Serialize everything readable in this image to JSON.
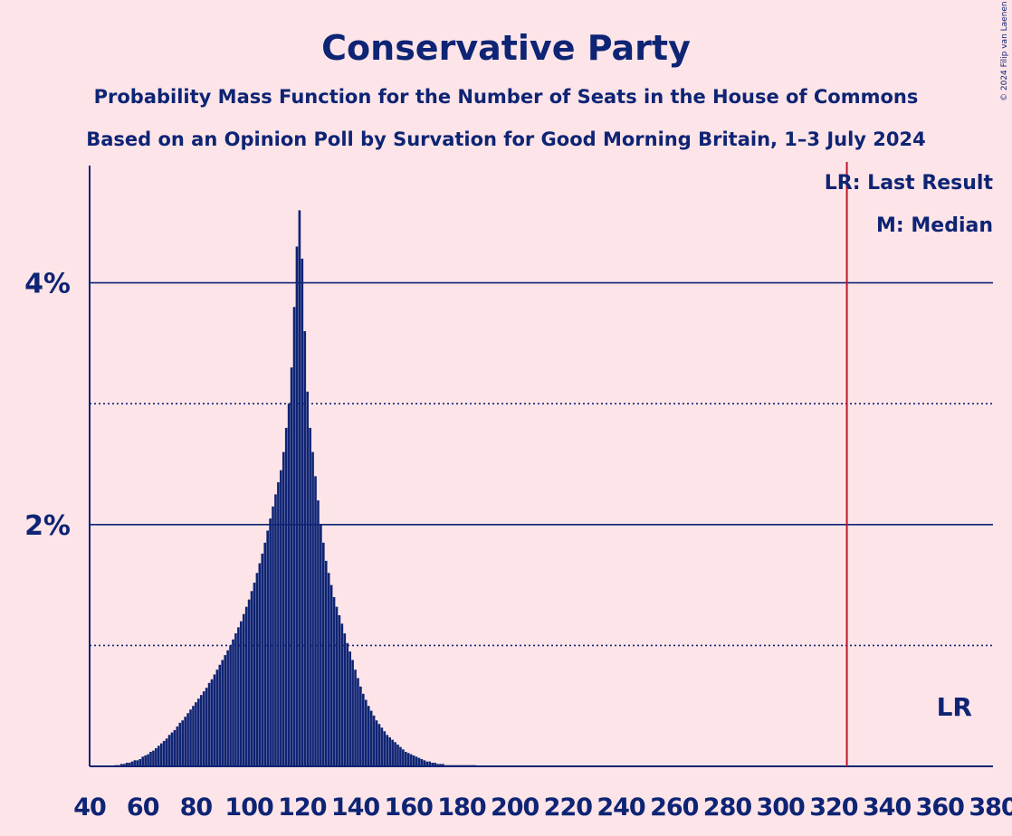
{
  "chart_data": {
    "type": "bar",
    "title": "Conservative Party",
    "subtitle1": "Probability Mass Function for the Number of Seats in the House of Commons",
    "subtitle2": "Based on an Opinion Poll by Survation for Good Morning Britain, 1–3 July 2024",
    "copyright": "© 2024 Filip van Laenen",
    "xlim": [
      40,
      380
    ],
    "ylim": [
      0,
      5
    ],
    "x_ticks": [
      40,
      60,
      80,
      100,
      120,
      140,
      160,
      180,
      200,
      220,
      240,
      260,
      280,
      300,
      320,
      340,
      360,
      380
    ],
    "y_ticks_labeled": [
      {
        "value": 2,
        "label": "2%"
      },
      {
        "value": 4,
        "label": "4%"
      }
    ],
    "y_gridlines_dotted": [
      1,
      3
    ],
    "last_result": {
      "seats": 325,
      "label": "LR"
    },
    "legend": {
      "last_result": "LR: Last Result",
      "median": "M: Median"
    },
    "bar_color": "#0e2474",
    "lr_line_color": "#c0152a",
    "series": [
      {
        "x": [
          50,
          51,
          52,
          53,
          54,
          55,
          56,
          57,
          58,
          59,
          60,
          61,
          62,
          63,
          64,
          65,
          66,
          67,
          68,
          69,
          70,
          71,
          72,
          73,
          74,
          75,
          76,
          77,
          78,
          79,
          80,
          81,
          82,
          83,
          84,
          85,
          86,
          87,
          88,
          89,
          90,
          91,
          92,
          93,
          94,
          95,
          96,
          97,
          98,
          99,
          100,
          101,
          102,
          103,
          104,
          105,
          106,
          107,
          108,
          109,
          110,
          111,
          112,
          113,
          114,
          115,
          116,
          117,
          118,
          119,
          120,
          121,
          122,
          123,
          124,
          125,
          126,
          127,
          128,
          129,
          130,
          131,
          132,
          133,
          134,
          135,
          136,
          137,
          138,
          139,
          140,
          141,
          142,
          143,
          144,
          145,
          146,
          147,
          148,
          149,
          150,
          151,
          152,
          153,
          154,
          155,
          156,
          157,
          158,
          159,
          160,
          161,
          162,
          163,
          164,
          165,
          166,
          167,
          168,
          169,
          170,
          171,
          172,
          173,
          174,
          175,
          176,
          177,
          178,
          179,
          180,
          181,
          182,
          183,
          184,
          185
        ],
        "values": [
          0.01,
          0.01,
          0.02,
          0.02,
          0.03,
          0.03,
          0.04,
          0.05,
          0.05,
          0.06,
          0.08,
          0.09,
          0.1,
          0.12,
          0.13,
          0.15,
          0.17,
          0.19,
          0.21,
          0.23,
          0.26,
          0.28,
          0.3,
          0.33,
          0.36,
          0.38,
          0.41,
          0.44,
          0.47,
          0.5,
          0.53,
          0.56,
          0.59,
          0.62,
          0.65,
          0.69,
          0.72,
          0.76,
          0.8,
          0.84,
          0.88,
          0.92,
          0.96,
          1.0,
          1.05,
          1.1,
          1.15,
          1.2,
          1.26,
          1.32,
          1.38,
          1.45,
          1.52,
          1.6,
          1.68,
          1.76,
          1.85,
          1.95,
          2.05,
          2.15,
          2.25,
          2.35,
          2.45,
          2.6,
          2.8,
          3.0,
          3.3,
          3.8,
          4.3,
          4.6,
          4.2,
          3.6,
          3.1,
          2.8,
          2.6,
          2.4,
          2.2,
          2.0,
          1.85,
          1.7,
          1.6,
          1.5,
          1.4,
          1.32,
          1.25,
          1.18,
          1.1,
          1.02,
          0.95,
          0.88,
          0.8,
          0.73,
          0.66,
          0.6,
          0.55,
          0.5,
          0.46,
          0.42,
          0.38,
          0.35,
          0.32,
          0.29,
          0.26,
          0.24,
          0.22,
          0.2,
          0.18,
          0.16,
          0.14,
          0.12,
          0.11,
          0.1,
          0.09,
          0.08,
          0.07,
          0.06,
          0.05,
          0.04,
          0.04,
          0.03,
          0.03,
          0.02,
          0.02,
          0.02,
          0.01,
          0.01,
          0.01,
          0.01,
          0.01,
          0.01,
          0.01,
          0.01,
          0.01,
          0.01,
          0.01,
          0.01
        ]
      }
    ]
  }
}
